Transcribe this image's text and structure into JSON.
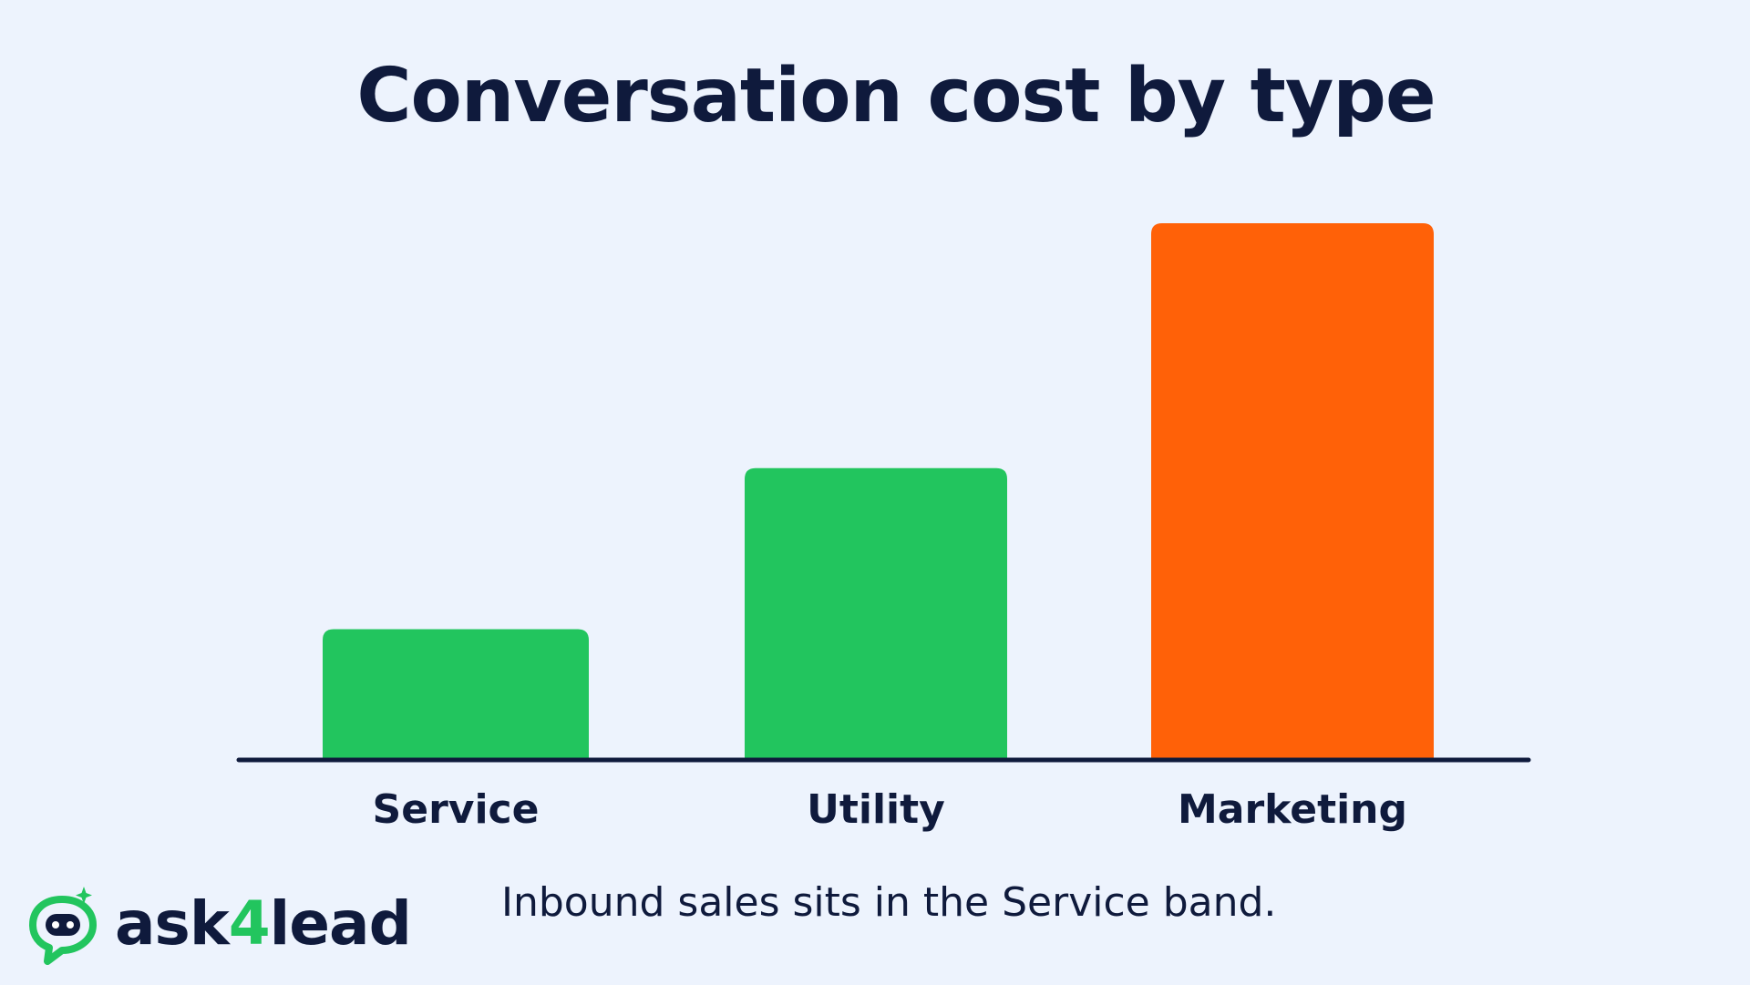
{
  "chart_data": {
    "type": "bar",
    "title": "Conversation cost by type",
    "categories": [
      "Service",
      "Utility",
      "Marketing"
    ],
    "values": [
      1,
      2.25,
      4.15
    ],
    "bar_colors": [
      "#22c55e",
      "#22c55e",
      "#ff6108"
    ],
    "ylim": [
      0,
      4.15
    ],
    "xlabel": "",
    "ylabel": "",
    "grid": false
  },
  "caption": "Inbound sales sits in the Service band.",
  "brand": {
    "name_prefix": "ask",
    "name_accent": "4",
    "name_suffix": "lead",
    "logo_icon": "chat-bubble-robot-icon",
    "primary_color": "#22c55e",
    "text_color": "#0f1a3c"
  }
}
